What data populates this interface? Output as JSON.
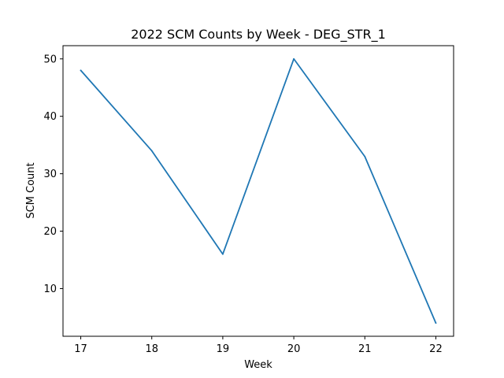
{
  "chart_data": {
    "type": "line",
    "title": "2022 SCM Counts by Week - DEG_STR_1",
    "xlabel": "Week",
    "ylabel": "SCM Count",
    "x": [
      17,
      18,
      19,
      20,
      21,
      22
    ],
    "series": [
      {
        "values": [
          48,
          34,
          16,
          50,
          33,
          4
        ],
        "color": "#1f77b4"
      }
    ],
    "xlim": [
      16.75,
      22.25
    ],
    "ylim": [
      1.7,
      52.3
    ],
    "xticks": [
      17,
      18,
      19,
      20,
      21,
      22
    ],
    "yticks": [
      10,
      20,
      30,
      40,
      50
    ],
    "grid": false,
    "legend": "none"
  }
}
